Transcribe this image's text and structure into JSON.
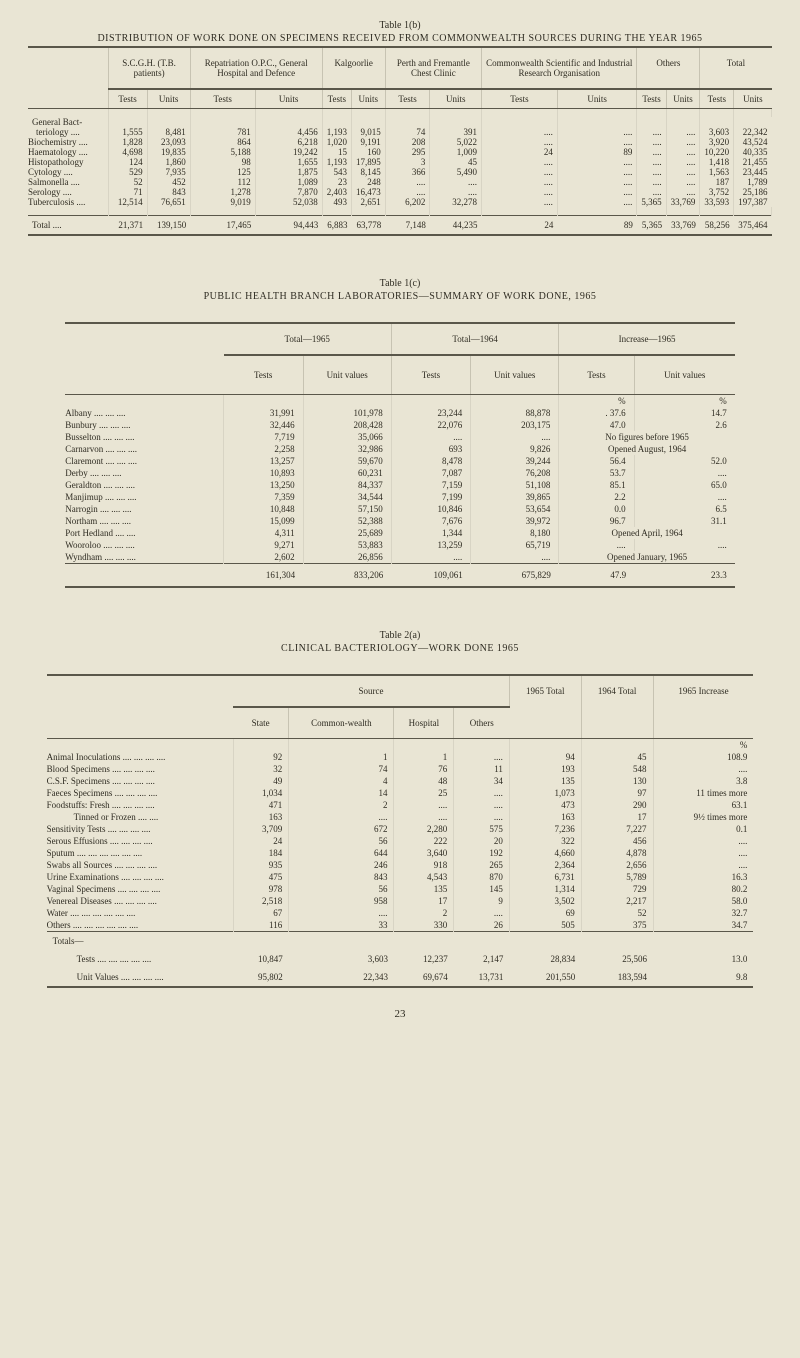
{
  "page_number": "23",
  "table1": {
    "caption_a": "Table 1(b)",
    "caption_b": "DISTRIBUTION OF WORK DONE ON SPECIMENS RECEIVED FROM COMMONWEALTH SOURCES DURING THE YEAR 1965",
    "group_headers": [
      "",
      "S.C.G.H. (T.B. patients)",
      "Repatriation O.P.C., General Hospital and Defence",
      "Kalgoorlie",
      "Perth and Fremantle Chest Clinic",
      "Commonwealth Scientific and Industrial Research Organisation",
      "Others",
      "Total"
    ],
    "sub_t": "Tests",
    "sub_u": "Units",
    "rows_header": "General Bact-",
    "rows": [
      {
        "label": "teriology ....",
        "v": [
          "1,555",
          "8,481",
          "781",
          "4,456",
          "1,193",
          "9,015",
          "74",
          "391",
          "....",
          "....",
          "....",
          "....",
          "3,603",
          "22,342"
        ]
      },
      {
        "label": "Biochemistry ....",
        "v": [
          "1,828",
          "23,093",
          "864",
          "6,218",
          "1,020",
          "9,191",
          "208",
          "5,022",
          "....",
          "....",
          "....",
          "....",
          "3,920",
          "43,524"
        ]
      },
      {
        "label": "Haematology ....",
        "v": [
          "4,698",
          "19,835",
          "5,188",
          "19,242",
          "15",
          "160",
          "295",
          "1,009",
          "24",
          "89",
          "....",
          "....",
          "10,220",
          "40,335"
        ]
      },
      {
        "label": "Histopathology",
        "v": [
          "124",
          "1,860",
          "98",
          "1,655",
          "1,193",
          "17,895",
          "3",
          "45",
          "....",
          "....",
          "....",
          "....",
          "1,418",
          "21,455"
        ]
      },
      {
        "label": "Cytology ....",
        "v": [
          "529",
          "7,935",
          "125",
          "1,875",
          "543",
          "8,145",
          "366",
          "5,490",
          "....",
          "....",
          "....",
          "....",
          "1,563",
          "23,445"
        ]
      },
      {
        "label": "Salmonella ....",
        "v": [
          "52",
          "452",
          "112",
          "1,089",
          "23",
          "248",
          "....",
          "....",
          "....",
          "....",
          "....",
          "....",
          "187",
          "1,789"
        ]
      },
      {
        "label": "Serology ....",
        "v": [
          "71",
          "843",
          "1,278",
          "7,870",
          "2,403",
          "16,473",
          "....",
          "....",
          "....",
          "....",
          "....",
          "....",
          "3,752",
          "25,186"
        ]
      },
      {
        "label": "Tuberculosis ....",
        "v": [
          "12,514",
          "76,651",
          "9,019",
          "52,038",
          "493",
          "2,651",
          "6,202",
          "32,278",
          "....",
          "....",
          "5,365",
          "33,769",
          "33,593",
          "197,387"
        ]
      }
    ],
    "total_label": "Total ....",
    "totals": [
      "21,371",
      "139,150",
      "17,465",
      "94,443",
      "6,883",
      "63,778",
      "7,148",
      "44,235",
      "24",
      "89",
      "5,365",
      "33,769",
      "58,256",
      "375,464"
    ]
  },
  "table2": {
    "caption_a": "Table 1(c)",
    "caption_b": "PUBLIC HEALTH BRANCH LABORATORIES—SUMMARY OF WORK DONE, 1965",
    "top_headers": [
      "",
      "Total—1965",
      "Total—1964",
      "Increase—1965"
    ],
    "sub_t": "Tests",
    "sub_u": "Unit values",
    "pct": "%",
    "rows": [
      {
        "label": "Albany .... .... ....",
        "v": [
          "31,991",
          "101,978",
          "23,244",
          "88,878",
          ". 37.6",
          "14.7"
        ]
      },
      {
        "label": "Bunbury .... .... ....",
        "v": [
          "32,446",
          "208,428",
          "22,076",
          "203,175",
          "47.0",
          "2.6"
        ]
      },
      {
        "label": "Busselton .... .... ....",
        "v": [
          "7,719",
          "35,066",
          "....",
          "....",
          "No figures before 1965",
          ""
        ]
      },
      {
        "label": "Carnarvon .... .... ....",
        "v": [
          "2,258",
          "32,986",
          "693",
          "9,826",
          "Opened August, 1964",
          ""
        ]
      },
      {
        "label": "Claremont .... .... ....",
        "v": [
          "13,257",
          "59,670",
          "8,478",
          "39,244",
          "56.4",
          "52.0"
        ]
      },
      {
        "label": "Derby .... .... ....",
        "v": [
          "10,893",
          "60,231",
          "7,087",
          "76,208",
          "53.7",
          "...."
        ]
      },
      {
        "label": "Geraldton .... .... ....",
        "v": [
          "13,250",
          "84,337",
          "7,159",
          "51,108",
          "85.1",
          "65.0"
        ]
      },
      {
        "label": "Manjimup .... .... ....",
        "v": [
          "7,359",
          "34,544",
          "7,199",
          "39,865",
          "2.2",
          "...."
        ]
      },
      {
        "label": "Narrogin .... .... ....",
        "v": [
          "10,848",
          "57,150",
          "10,846",
          "53,654",
          "0.0",
          "6.5"
        ]
      },
      {
        "label": "Northam .... .... ....",
        "v": [
          "15,099",
          "52,388",
          "7,676",
          "39,972",
          "96.7",
          "31.1"
        ]
      },
      {
        "label": "Port Hedland .... ....",
        "v": [
          "4,311",
          "25,689",
          "1,344",
          "8,180",
          "Opened April, 1964",
          ""
        ]
      },
      {
        "label": "Wooroloo .... .... ....",
        "v": [
          "9,271",
          "53,883",
          "13,259",
          "65,719",
          "....",
          "...."
        ]
      },
      {
        "label": "Wyndham .... .... ....",
        "v": [
          "2,602",
          "26,856",
          "....",
          "....",
          "Opened January, 1965",
          ""
        ]
      }
    ],
    "totals": [
      "161,304",
      "833,206",
      "109,061",
      "675,829",
      "47.9",
      "23.3"
    ]
  },
  "table3": {
    "caption_a": "Table 2(a)",
    "caption_b": "CLINICAL BACTERIOLOGY—WORK DONE 1965",
    "source_hdr": "Source",
    "cols": [
      "State",
      "Common-wealth",
      "Hospital",
      "Others",
      "1965 Total",
      "1964 Total",
      "1965 Increase"
    ],
    "pct": "%",
    "rows": [
      {
        "label": "Animal Inoculations .... .... .... ....",
        "v": [
          "92",
          "1",
          "1",
          "....",
          "94",
          "45",
          "108.9"
        ]
      },
      {
        "label": "Blood Specimens .... .... .... ....",
        "v": [
          "32",
          "74",
          "76",
          "11",
          "193",
          "548",
          "...."
        ]
      },
      {
        "label": "C.S.F. Specimens .... .... .... ....",
        "v": [
          "49",
          "4",
          "48",
          "34",
          "135",
          "130",
          "3.8"
        ]
      },
      {
        "label": "Faeces Specimens .... .... .... ....",
        "v": [
          "1,034",
          "14",
          "25",
          "....",
          "1,073",
          "97",
          "11 times more"
        ]
      },
      {
        "label": "Foodstuffs: Fresh .... .... .... ....",
        "v": [
          "471",
          "2",
          "....",
          "....",
          "473",
          "290",
          "63.1"
        ]
      },
      {
        "label": "   Tinned or Frozen .... ....",
        "v": [
          "163",
          "....",
          "....",
          "....",
          "163",
          "17",
          "9½ times more"
        ]
      },
      {
        "label": "Sensitivity Tests .... .... .... ....",
        "v": [
          "3,709",
          "672",
          "2,280",
          "575",
          "7,236",
          "7,227",
          "0.1"
        ]
      },
      {
        "label": "Serous Effusions .... .... .... ....",
        "v": [
          "24",
          "56",
          "222",
          "20",
          "322",
          "456",
          "...."
        ]
      },
      {
        "label": "Sputum .... .... .... .... .... ....",
        "v": [
          "184",
          "644",
          "3,640",
          "192",
          "4,660",
          "4,878",
          "...."
        ]
      },
      {
        "label": "Swabs all Sources .... .... .... ....",
        "v": [
          "935",
          "246",
          "918",
          "265",
          "2,364",
          "2,656",
          "...."
        ]
      },
      {
        "label": "Urine Examinations .... .... .... ....",
        "v": [
          "475",
          "843",
          "4,543",
          "870",
          "6,731",
          "5,789",
          "16.3"
        ]
      },
      {
        "label": "Vaginal Specimens .... .... .... ....",
        "v": [
          "978",
          "56",
          "135",
          "145",
          "1,314",
          "729",
          "80.2"
        ]
      },
      {
        "label": "Venereal Diseases .... .... .... ....",
        "v": [
          "2,518",
          "958",
          "17",
          "9",
          "3,502",
          "2,217",
          "58.0"
        ]
      },
      {
        "label": "Water .... .... .... .... .... ....",
        "v": [
          "67",
          "....",
          "2",
          "....",
          "69",
          "52",
          "32.7"
        ]
      },
      {
        "label": "Others .... .... .... .... .... ....",
        "v": [
          "116",
          "33",
          "330",
          "26",
          "505",
          "375",
          "34.7"
        ]
      }
    ],
    "totals_hdr": "Totals—",
    "total_tests_label": "Tests .... .... .... .... ....",
    "total_tests": [
      "10,847",
      "3,603",
      "12,237",
      "2,147",
      "28,834",
      "25,506",
      "13.0"
    ],
    "total_uv_label": "Unit Values .... .... .... ....",
    "total_uv": [
      "95,802",
      "22,343",
      "69,674",
      "13,731",
      "201,550",
      "183,594",
      "9.8"
    ]
  }
}
